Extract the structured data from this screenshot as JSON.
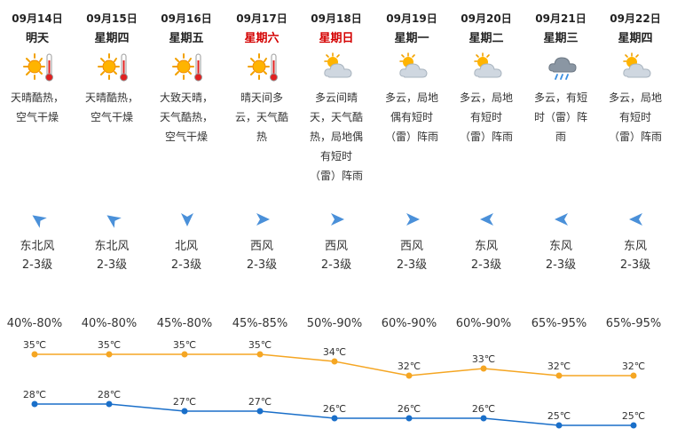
{
  "days": [
    {
      "date": "09月14日",
      "day": "明天",
      "weekend": false,
      "icon": "sunny-hot-icon",
      "desc": "天晴酷热，空气干燥",
      "wind_dir": "东北风",
      "wind_level": "2-3级",
      "wind_arrow": "northeast-wind-arrow-icon",
      "humidity": "40%-80%"
    },
    {
      "date": "09月15日",
      "day": "星期四",
      "weekend": false,
      "icon": "sunny-hot-icon",
      "desc": "天晴酷热，空气干燥",
      "wind_dir": "东北风",
      "wind_level": "2-3级",
      "wind_arrow": "northeast-wind-arrow-icon",
      "humidity": "40%-80%"
    },
    {
      "date": "09月16日",
      "day": "星期五",
      "weekend": false,
      "icon": "sunny-hot-icon",
      "desc": "大致天晴，天气酷热，空气干燥",
      "wind_dir": "北风",
      "wind_level": "2-3级",
      "wind_arrow": "north-wind-arrow-icon",
      "humidity": "45%-80%"
    },
    {
      "date": "09月17日",
      "day": "星期六",
      "weekend": true,
      "icon": "sunny-hot-icon",
      "desc": "晴天间多云，天气酷热",
      "wind_dir": "西风",
      "wind_level": "2-3级",
      "wind_arrow": "west-wind-arrow-icon",
      "humidity": "45%-85%"
    },
    {
      "date": "09月18日",
      "day": "星期日",
      "weekend": true,
      "icon": "partly-cloudy-icon",
      "desc": "多云间晴天，天气酷热，局地偶有短时（雷）阵雨",
      "wind_dir": "西风",
      "wind_level": "2-3级",
      "wind_arrow": "west-wind-arrow-icon",
      "humidity": "50%-90%"
    },
    {
      "date": "09月19日",
      "day": "星期一",
      "weekend": false,
      "icon": "partly-cloudy-icon",
      "desc": "多云，局地偶有短时（雷）阵雨",
      "wind_dir": "西风",
      "wind_level": "2-3级",
      "wind_arrow": "west-wind-arrow-icon",
      "humidity": "60%-90%"
    },
    {
      "date": "09月20日",
      "day": "星期二",
      "weekend": false,
      "icon": "partly-cloudy-icon",
      "desc": "多云，局地有短时（雷）阵雨",
      "wind_dir": "东风",
      "wind_level": "2-3级",
      "wind_arrow": "east-wind-arrow-icon",
      "humidity": "60%-90%"
    },
    {
      "date": "09月21日",
      "day": "星期三",
      "weekend": false,
      "icon": "cloudy-rain-icon",
      "desc": "多云，有短时（雷）阵雨",
      "wind_dir": "东风",
      "wind_level": "2-3级",
      "wind_arrow": "east-wind-arrow-icon",
      "humidity": "65%-95%"
    },
    {
      "date": "09月22日",
      "day": "星期四",
      "weekend": false,
      "icon": "partly-cloudy-icon",
      "desc": "多云，局地有短时（雷）阵雨",
      "wind_dir": "东风",
      "wind_level": "2-3级",
      "wind_arrow": "east-wind-arrow-icon",
      "humidity": "65%-95%"
    }
  ],
  "colors": {
    "weekend": "#d40000",
    "high_line": "#f5a623",
    "low_line": "#1a6fc9",
    "wind_arrow": "#4a90d9"
  },
  "chart_data": {
    "type": "line",
    "x": [
      "09月14日",
      "09月15日",
      "09月16日",
      "09月17日",
      "09月18日",
      "09月19日",
      "09月20日",
      "09月21日",
      "09月22日"
    ],
    "series": [
      {
        "key": "high",
        "values": [
          35,
          35,
          35,
          35,
          34,
          32,
          33,
          32,
          32
        ],
        "labels": [
          "35℃",
          "35℃",
          "35℃",
          "35℃",
          "34℃",
          "32℃",
          "33℃",
          "32℃",
          "32℃"
        ]
      },
      {
        "key": "low",
        "values": [
          28,
          28,
          27,
          27,
          26,
          26,
          26,
          25,
          25
        ],
        "labels": [
          "28℃",
          "28℃",
          "27℃",
          "27℃",
          "26℃",
          "26℃",
          "26℃",
          "25℃",
          "25℃"
        ]
      }
    ],
    "ylim": [
      24,
      36
    ],
    "grid": false
  }
}
